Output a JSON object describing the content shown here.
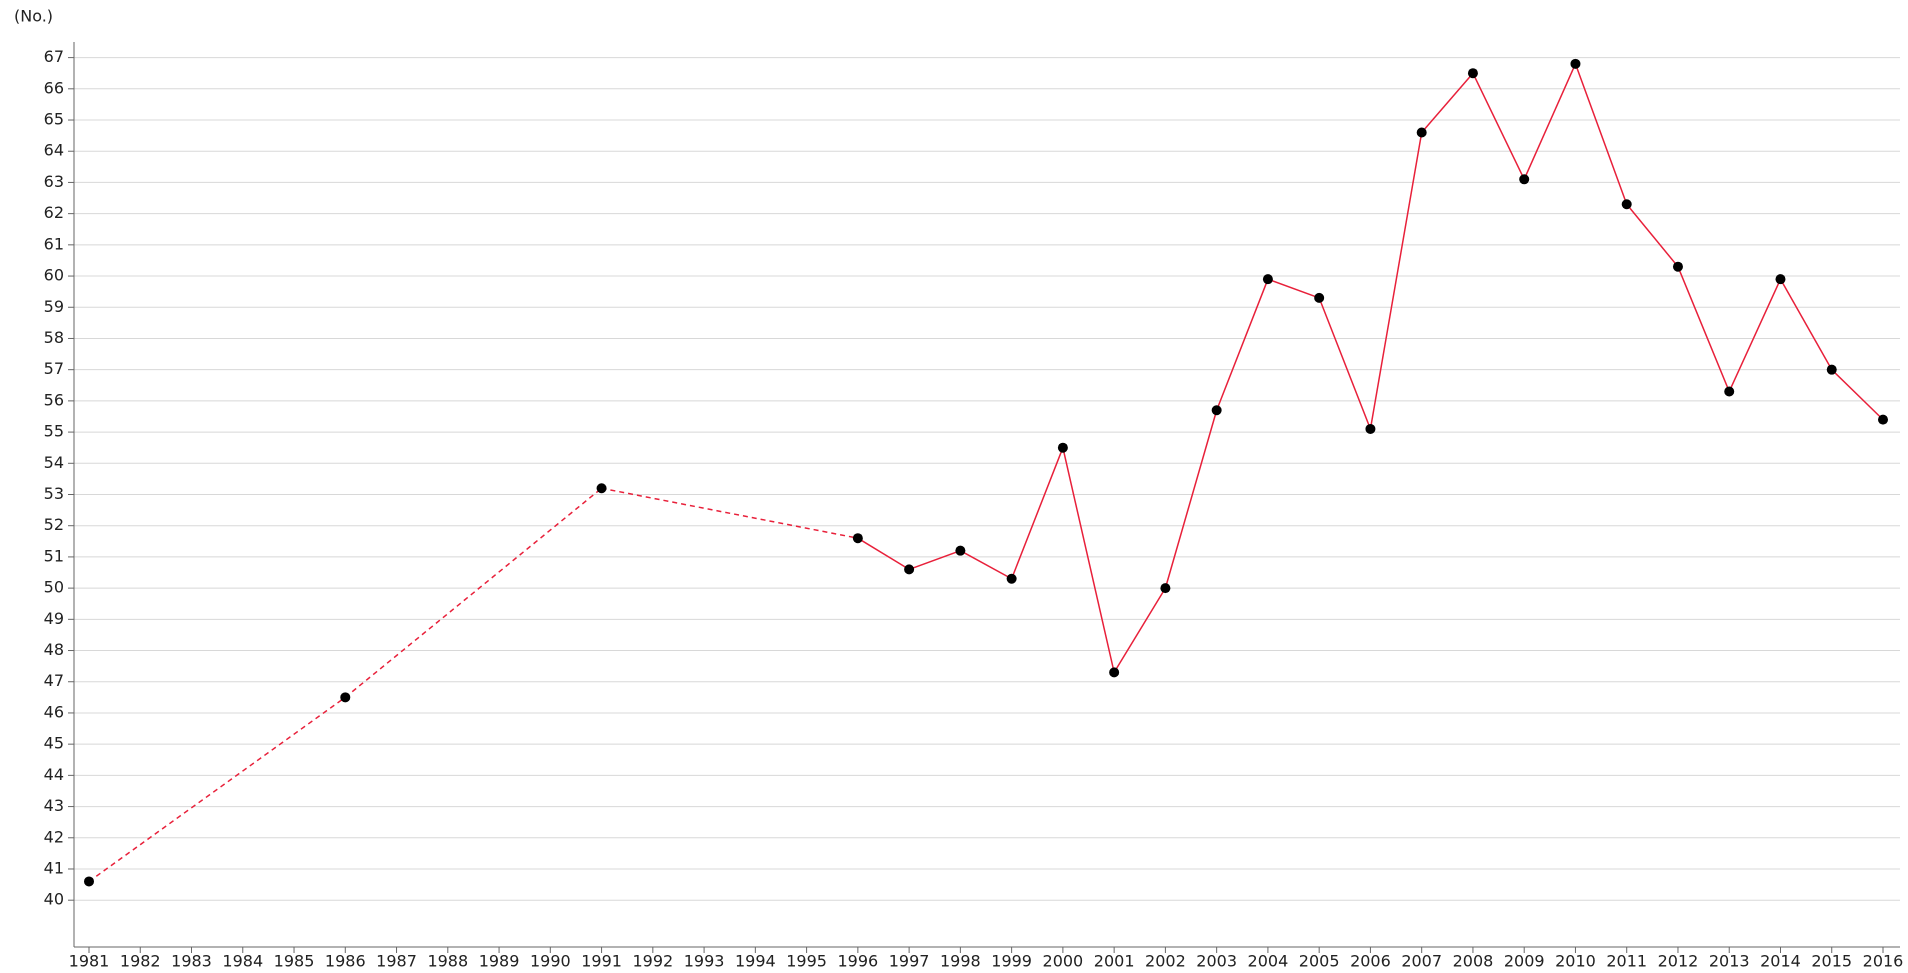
{
  "chart_data": {
    "type": "line",
    "y_unit_label": "(No.)",
    "categories": [
      "1981",
      "1982",
      "1983",
      "1984",
      "1985",
      "1986",
      "1987",
      "1988",
      "1989",
      "1990",
      "1991",
      "1992",
      "1993",
      "1994",
      "1995",
      "1996",
      "1997",
      "1998",
      "1999",
      "2000",
      "2001",
      "2002",
      "2003",
      "2004",
      "2005",
      "2006",
      "2007",
      "2008",
      "2009",
      "2010",
      "2011",
      "2012",
      "2013",
      "2014",
      "2015",
      "2016"
    ],
    "series": [
      {
        "color": "#e8203a",
        "marker_color": "#000000",
        "values": [
          40.6,
          null,
          null,
          null,
          null,
          46.5,
          null,
          null,
          null,
          null,
          53.2,
          null,
          null,
          null,
          null,
          51.6,
          50.6,
          51.2,
          50.3,
          54.5,
          47.3,
          50.0,
          55.7,
          59.9,
          59.3,
          55.1,
          64.6,
          66.5,
          63.1,
          66.8,
          62.3,
          60.3,
          56.3,
          59.9,
          57.0,
          55.4
        ]
      }
    ],
    "ylim": [
      38.5,
      67.5
    ],
    "yticks": [
      40,
      41,
      42,
      43,
      44,
      45,
      46,
      47,
      48,
      49,
      50,
      51,
      52,
      53,
      54,
      55,
      56,
      57,
      58,
      59,
      60,
      61,
      62,
      63,
      64,
      65,
      66,
      67
    ],
    "grid": true,
    "gap_line_style": "dashed"
  }
}
